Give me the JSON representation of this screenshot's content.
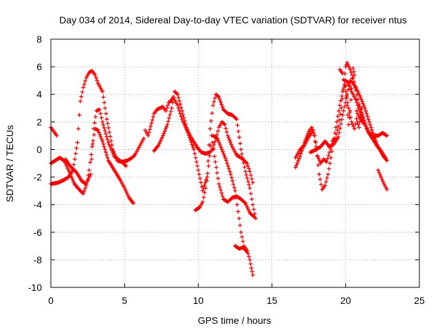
{
  "chart_data": {
    "type": "scatter",
    "title": "Day 034 of 2014, Sidereal Day-to-day VTEC variation (SDTVAR) for receiver ntus",
    "xlabel": "GPS time / hours",
    "ylabel": "SDTVAR / TECUs",
    "xlim": [
      0,
      25
    ],
    "ylim": [
      -10,
      8
    ],
    "x_ticks": [
      0,
      5,
      10,
      15,
      20,
      25
    ],
    "y_ticks": [
      -10,
      -8,
      -6,
      -4,
      -2,
      0,
      2,
      4,
      6,
      8
    ],
    "grid": true,
    "marker": "+",
    "colors": {
      "series": "#ff0000",
      "grid": "#a0a0a0",
      "axes": "#000000"
    },
    "series": [
      {
        "name": "trace-a",
        "points": [
          [
            0.0,
            -1.0
          ],
          [
            0.3,
            -0.8
          ],
          [
            0.6,
            -0.6
          ],
          [
            0.9,
            -0.8
          ],
          [
            1.2,
            -1.5
          ],
          [
            1.6,
            -2.5
          ],
          [
            2.0,
            -3.0
          ],
          [
            2.2,
            -3.2
          ],
          [
            2.4,
            -2.6
          ],
          [
            2.6,
            -1.5
          ],
          [
            2.8,
            0.2
          ],
          [
            3.0,
            1.5
          ],
          [
            3.2,
            1.4
          ],
          [
            3.5,
            0.6
          ],
          [
            3.9,
            -0.8
          ],
          [
            4.3,
            -1.5
          ],
          [
            4.7,
            -2.2
          ],
          [
            5.0,
            -2.8
          ],
          [
            5.3,
            -3.5
          ],
          [
            5.6,
            -3.9
          ]
        ]
      },
      {
        "name": "trace-b",
        "points": [
          [
            0.0,
            -2.5
          ],
          [
            0.5,
            -2.4
          ],
          [
            0.9,
            -2.2
          ],
          [
            1.2,
            -2.0
          ],
          [
            1.5,
            -1.5
          ],
          [
            1.8,
            0.5
          ],
          [
            2.0,
            3.5
          ],
          [
            2.2,
            4.5
          ],
          [
            2.4,
            5.2
          ],
          [
            2.6,
            5.6
          ],
          [
            2.8,
            5.7
          ],
          [
            3.0,
            5.4
          ],
          [
            3.2,
            4.8
          ],
          [
            3.5,
            4.2
          ],
          [
            3.8,
            2.2
          ],
          [
            4.2,
            0.0
          ],
          [
            4.5,
            -0.8
          ],
          [
            4.8,
            -0.9
          ],
          [
            5.1,
            -1.2
          ]
        ]
      },
      {
        "name": "trace-c",
        "points": [
          [
            0.0,
            1.6
          ],
          [
            0.2,
            1.3
          ],
          [
            0.4,
            1.0
          ]
        ]
      },
      {
        "name": "trace-d",
        "points": [
          [
            1.0,
            -0.7
          ],
          [
            1.3,
            -1.2
          ],
          [
            1.7,
            -1.6
          ],
          [
            2.1,
            -2.3
          ],
          [
            2.4,
            -2.5
          ],
          [
            2.7,
            -1.8
          ],
          [
            2.9,
            1.5
          ],
          [
            3.1,
            2.8
          ],
          [
            3.3,
            2.9
          ],
          [
            3.5,
            2.0
          ],
          [
            3.9,
            0.5
          ],
          [
            4.3,
            -0.5
          ],
          [
            4.8,
            -0.9
          ],
          [
            5.2,
            -0.8
          ],
          [
            5.5,
            -0.6
          ],
          [
            5.7,
            -0.4
          ],
          [
            5.9,
            0.0
          ],
          [
            6.1,
            0.4
          ],
          [
            6.3,
            0.8
          ]
        ]
      },
      {
        "name": "trace-e",
        "points": [
          [
            6.4,
            1.4
          ],
          [
            6.6,
            1.0
          ],
          [
            7.0,
            2.6
          ],
          [
            7.2,
            2.9
          ],
          [
            7.4,
            3.0
          ],
          [
            7.6,
            3.1
          ],
          [
            7.8,
            2.8
          ],
          [
            8.0,
            3.4
          ],
          [
            8.2,
            3.6
          ],
          [
            8.3,
            3.8
          ]
        ]
      },
      {
        "name": "trace-f",
        "points": [
          [
            7.0,
            -0.1
          ],
          [
            7.3,
            0.3
          ],
          [
            7.6,
            1.0
          ],
          [
            7.9,
            1.8
          ],
          [
            8.2,
            3.0
          ],
          [
            8.4,
            4.2
          ],
          [
            8.6,
            4.0
          ],
          [
            8.9,
            2.8
          ],
          [
            9.2,
            1.6
          ],
          [
            9.5,
            0.9
          ],
          [
            9.9,
            0.2
          ],
          [
            10.2,
            -0.2
          ],
          [
            10.5,
            -0.3
          ],
          [
            10.8,
            -0.2
          ],
          [
            11.0,
            0.1
          ],
          [
            11.2,
            0.8
          ],
          [
            11.4,
            1.6
          ],
          [
            11.6,
            2.0
          ],
          [
            11.8,
            1.8
          ],
          [
            12.0,
            1.0
          ],
          [
            12.3,
            0.2
          ],
          [
            12.6,
            -0.4
          ],
          [
            12.9,
            -0.6
          ],
          [
            13.1,
            -0.8
          ],
          [
            13.3,
            -1.0
          ],
          [
            13.5,
            -1.6
          ],
          [
            13.7,
            -2.4
          ]
        ]
      },
      {
        "name": "trace-g",
        "points": [
          [
            8.4,
            3.6
          ],
          [
            8.6,
            3.2
          ],
          [
            8.9,
            2.2
          ],
          [
            9.3,
            1.2
          ],
          [
            9.7,
            0.0
          ],
          [
            10.0,
            -1.5
          ],
          [
            10.3,
            -3.0
          ],
          [
            10.6,
            -2.0
          ],
          [
            10.8,
            1.5
          ],
          [
            11.0,
            3.2
          ],
          [
            11.2,
            4.0
          ],
          [
            11.4,
            3.8
          ],
          [
            11.7,
            2.9
          ],
          [
            12.0,
            2.6
          ],
          [
            12.3,
            2.5
          ],
          [
            12.6,
            2.2
          ],
          [
            12.9,
            0.0
          ],
          [
            13.2,
            -1.6
          ],
          [
            13.5,
            -2.8
          ],
          [
            13.7,
            -4.0
          ],
          [
            13.9,
            -5.0
          ]
        ]
      },
      {
        "name": "trace-h",
        "points": [
          [
            9.8,
            -4.4
          ],
          [
            10.1,
            -4.2
          ],
          [
            10.3,
            -3.8
          ],
          [
            10.5,
            -2.8
          ],
          [
            10.7,
            -1.2
          ],
          [
            10.9,
            1.0
          ],
          [
            11.1,
            -0.5
          ],
          [
            11.4,
            -2.5
          ],
          [
            11.7,
            -3.6
          ],
          [
            12.0,
            -3.8
          ],
          [
            12.3,
            -3.5
          ],
          [
            12.6,
            -3.4
          ],
          [
            12.9,
            -3.6
          ],
          [
            13.2,
            -3.9
          ],
          [
            13.5,
            -4.6
          ],
          [
            13.8,
            -4.9
          ]
        ]
      },
      {
        "name": "trace-i",
        "points": [
          [
            11.0,
            1.0
          ],
          [
            11.3,
            0.8
          ],
          [
            11.6,
            0.0
          ],
          [
            11.9,
            -0.8
          ],
          [
            12.2,
            -1.8
          ],
          [
            12.5,
            -3.0
          ],
          [
            12.7,
            -4.5
          ],
          [
            12.9,
            -6.0
          ],
          [
            13.1,
            -7.0
          ],
          [
            13.3,
            -7.3
          ],
          [
            13.5,
            -8.0
          ],
          [
            13.6,
            -8.6
          ],
          [
            13.7,
            -9.1
          ]
        ]
      },
      {
        "name": "trace-j",
        "points": [
          [
            12.5,
            -7.0
          ],
          [
            12.8,
            -7.2
          ],
          [
            13.0,
            -7.1
          ],
          [
            13.3,
            -7.4
          ]
        ]
      },
      {
        "name": "trace-k",
        "points": [
          [
            16.6,
            -1.3
          ],
          [
            16.9,
            -0.5
          ],
          [
            17.2,
            0.5
          ],
          [
            17.5,
            1.3
          ],
          [
            17.7,
            1.6
          ],
          [
            17.9,
            1.0
          ],
          [
            18.1,
            -0.5
          ],
          [
            18.3,
            -1.0
          ],
          [
            18.5,
            -0.7
          ],
          [
            18.7,
            -0.9
          ],
          [
            18.9,
            -0.2
          ],
          [
            19.1,
            0.6
          ],
          [
            19.3,
            0.8
          ],
          [
            19.5,
            1.7
          ],
          [
            19.7,
            3.0
          ],
          [
            19.9,
            5.0
          ],
          [
            20.0,
            6.0
          ],
          [
            20.1,
            6.3
          ],
          [
            20.3,
            5.8
          ],
          [
            20.5,
            5.2
          ],
          [
            20.7,
            4.3
          ],
          [
            20.9,
            3.3
          ],
          [
            21.2,
            2.3
          ],
          [
            21.5,
            1.3
          ],
          [
            21.8,
            0.8
          ],
          [
            22.1,
            0.3
          ],
          [
            22.4,
            -0.1
          ],
          [
            22.7,
            -0.6
          ]
        ]
      },
      {
        "name": "trace-l",
        "points": [
          [
            16.6,
            -0.6
          ],
          [
            16.9,
            0.0
          ],
          [
            17.2,
            0.3
          ],
          [
            17.5,
            0.9
          ],
          [
            17.8,
            1.4
          ],
          [
            18.0,
            0.2
          ],
          [
            18.2,
            -1.8
          ],
          [
            18.4,
            -2.9
          ],
          [
            18.6,
            -2.6
          ],
          [
            18.8,
            -1.8
          ],
          [
            19.0,
            -0.6
          ],
          [
            19.2,
            0.8
          ],
          [
            19.4,
            2.0
          ],
          [
            19.6,
            3.2
          ],
          [
            19.8,
            4.2
          ],
          [
            20.0,
            5.0
          ],
          [
            20.2,
            4.8
          ],
          [
            20.4,
            4.2
          ],
          [
            20.7,
            3.6
          ],
          [
            21.0,
            2.6
          ],
          [
            21.3,
            1.8
          ],
          [
            21.6,
            1.2
          ],
          [
            21.9,
            1.0
          ],
          [
            22.2,
            1.0
          ],
          [
            22.5,
            1.2
          ],
          [
            22.8,
            1.0
          ]
        ]
      },
      {
        "name": "trace-m",
        "points": [
          [
            17.6,
            -0.2
          ],
          [
            18.0,
            0.0
          ],
          [
            18.3,
            0.2
          ],
          [
            18.6,
            0.6
          ],
          [
            18.9,
            0.2
          ],
          [
            19.2,
            0.4
          ],
          [
            19.5,
            0.9
          ],
          [
            19.8,
            2.5
          ],
          [
            20.1,
            4.0
          ],
          [
            20.3,
            5.0
          ],
          [
            20.5,
            4.8
          ],
          [
            20.7,
            4.5
          ],
          [
            21.0,
            3.8
          ],
          [
            21.3,
            3.0
          ],
          [
            21.6,
            2.0
          ],
          [
            21.9,
            1.0
          ],
          [
            22.2,
            0.2
          ],
          [
            22.5,
            -0.4
          ],
          [
            22.8,
            -0.8
          ]
        ]
      },
      {
        "name": "trace-n",
        "points": [
          [
            19.6,
            5.8
          ],
          [
            19.8,
            5.5
          ],
          [
            20.0,
            4.2
          ],
          [
            20.2,
            3.0
          ],
          [
            20.4,
            2.0
          ],
          [
            20.6,
            1.5
          ],
          [
            20.8,
            2.6
          ],
          [
            21.0,
            2.2
          ],
          [
            21.2,
            1.9
          ]
        ]
      },
      {
        "name": "trace-o",
        "points": [
          [
            22.2,
            -1.5
          ],
          [
            22.4,
            -2.0
          ],
          [
            22.6,
            -2.5
          ],
          [
            22.8,
            -2.9
          ]
        ]
      },
      {
        "name": "trace-p",
        "points": [
          [
            20.0,
            4.6
          ],
          [
            20.1,
            3.2
          ],
          [
            20.2,
            1.8
          ],
          [
            20.3,
            2.8
          ],
          [
            20.4,
            4.4
          ],
          [
            20.5,
            5.9
          ],
          [
            20.6,
            5.4
          ],
          [
            20.7,
            3.6
          ],
          [
            20.8,
            2.0
          ],
          [
            20.9,
            1.6
          ],
          [
            21.0,
            2.4
          ],
          [
            21.1,
            3.0
          ]
        ]
      }
    ]
  }
}
